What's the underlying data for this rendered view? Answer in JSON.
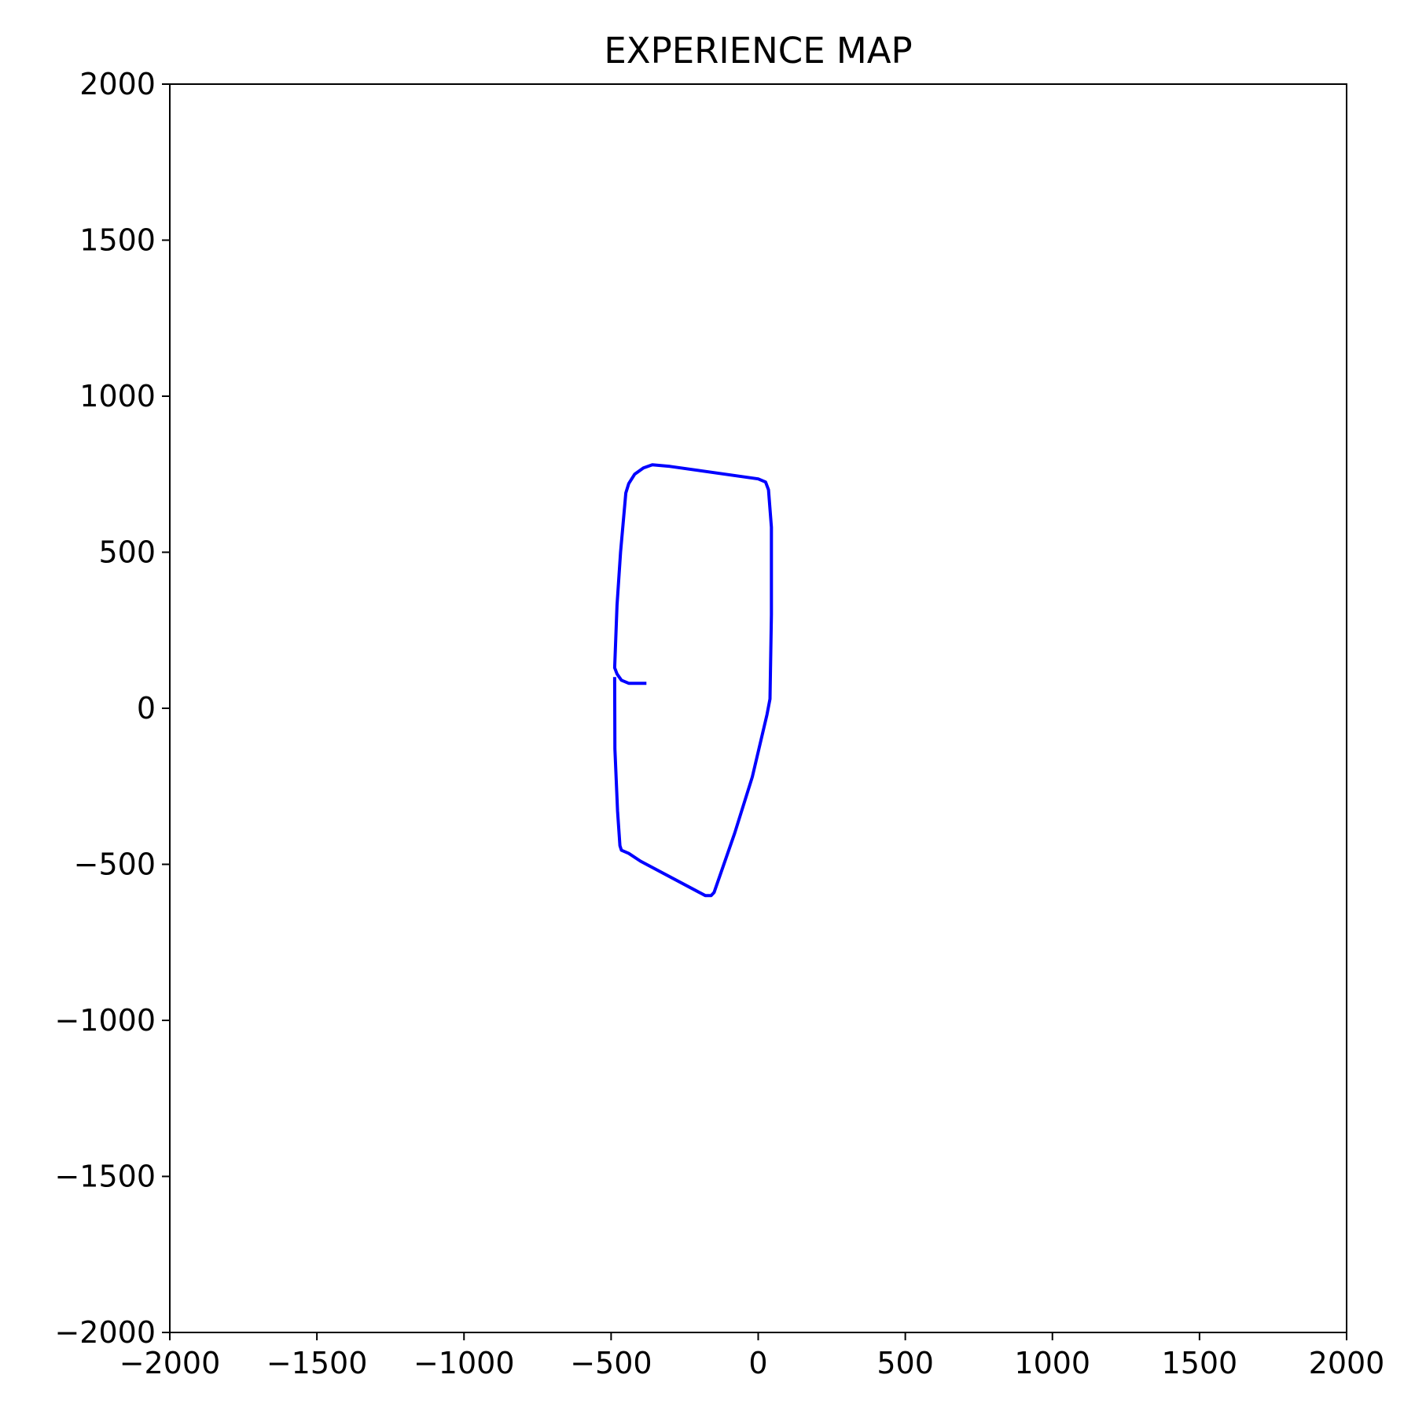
{
  "chart_data": {
    "type": "line",
    "title": "EXPERIENCE MAP",
    "xlabel": "",
    "ylabel": "",
    "xlim": [
      -2000,
      2000
    ],
    "ylim": [
      -2000,
      2000
    ],
    "xticks": [
      -2000,
      -1500,
      -1000,
      -500,
      0,
      500,
      1000,
      1500,
      2000
    ],
    "yticks": [
      -2000,
      -1500,
      -1000,
      -500,
      0,
      500,
      1000,
      1500,
      2000
    ],
    "xtick_labels": [
      "−2000",
      "−1500",
      "−1000",
      "−500",
      "0",
      "500",
      "1000",
      "1500",
      "2000"
    ],
    "ytick_labels": [
      "−2000",
      "−1500",
      "−1000",
      "−500",
      "0",
      "500",
      "1000",
      "1500",
      "2000"
    ],
    "grid": false,
    "series": [
      {
        "color": "#0000ff",
        "points": [
          [
            -380,
            80
          ],
          [
            -440,
            80
          ],
          [
            -465,
            90
          ],
          [
            -480,
            110
          ],
          [
            -488,
            130
          ],
          [
            -480,
            330
          ],
          [
            -468,
            500
          ],
          [
            -450,
            690
          ],
          [
            -440,
            720
          ],
          [
            -420,
            750
          ],
          [
            -390,
            770
          ],
          [
            -360,
            780
          ],
          [
            -300,
            775
          ],
          [
            0,
            735
          ],
          [
            25,
            725
          ],
          [
            35,
            700
          ],
          [
            45,
            580
          ],
          [
            45,
            300
          ],
          [
            40,
            30
          ],
          [
            30,
            -20
          ],
          [
            -20,
            -220
          ],
          [
            -80,
            -400
          ],
          [
            -150,
            -590
          ],
          [
            -160,
            -600
          ],
          [
            -180,
            -600
          ],
          [
            -400,
            -490
          ],
          [
            -440,
            -465
          ],
          [
            -465,
            -455
          ],
          [
            -470,
            -440
          ],
          [
            -478,
            -330
          ],
          [
            -487,
            -130
          ],
          [
            -488,
            100
          ]
        ]
      }
    ]
  }
}
